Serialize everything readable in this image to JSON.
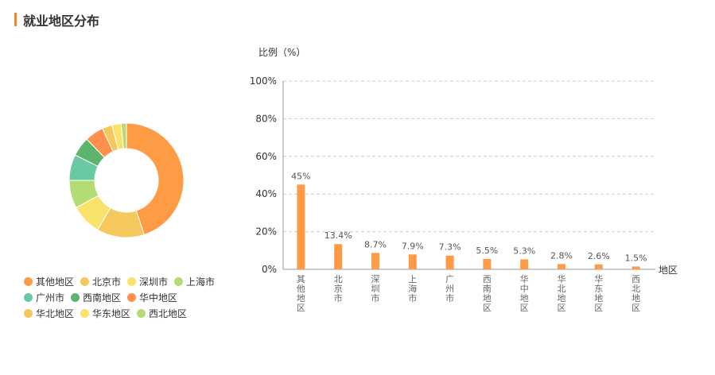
{
  "page": {
    "title": "就业地区分布"
  },
  "chart_data": [
    {
      "type": "pie",
      "variant": "donut",
      "categories": [
        "其他地区",
        "北京市",
        "深圳市",
        "上海市",
        "广州市",
        "西南地区",
        "华中地区",
        "华北地区",
        "华东地区",
        "西北地区"
      ],
      "values": [
        45,
        13.4,
        8.7,
        7.9,
        7.3,
        5.5,
        5.3,
        2.8,
        2.6,
        1.5
      ],
      "colors": [
        "#ff9a45",
        "#f5c85d",
        "#f9e26b",
        "#b4dc75",
        "#6ac8a2",
        "#5cb46e",
        "#ff8f4a",
        "#f5c85d",
        "#f9e26b",
        "#b4dc75"
      ],
      "legend": "bottom-left"
    },
    {
      "type": "bar",
      "categories": [
        "其他地区",
        "北京市",
        "深圳市",
        "上海市",
        "广州市",
        "西南地区",
        "华中地区",
        "华北地区",
        "华东地区",
        "西北地区"
      ],
      "values": [
        45,
        13.4,
        8.7,
        7.9,
        7.3,
        5.5,
        5.3,
        2.8,
        2.6,
        1.5
      ],
      "value_labels": [
        "45%",
        "13.4%",
        "8.7%",
        "7.9%",
        "7.3%",
        "5.5%",
        "5.3%",
        "2.8%",
        "2.6%",
        "1.5%"
      ],
      "ylabel": "比例（%）",
      "xlabel": "地区",
      "ylim": [
        0,
        100
      ],
      "yticks": [
        "0%",
        "20%",
        "40%",
        "60%",
        "80%",
        "100%"
      ],
      "bar_color": "#ff9a45",
      "grid": true
    }
  ]
}
